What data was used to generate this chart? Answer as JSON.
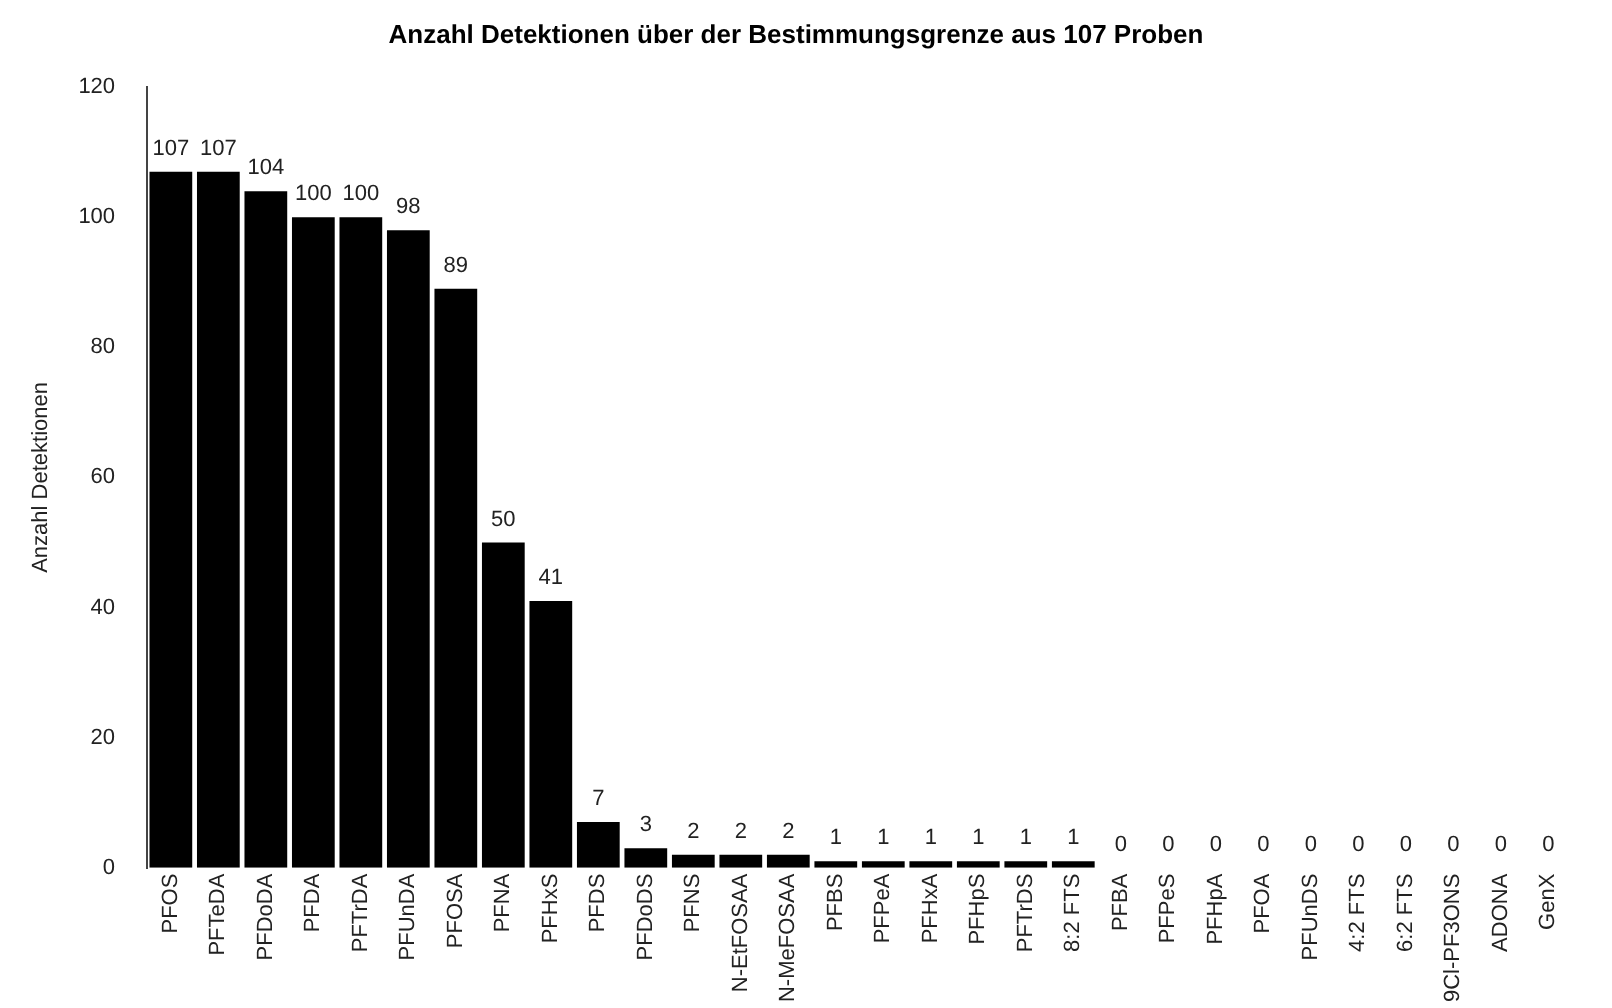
{
  "chart_data": {
    "type": "bar",
    "title": "Anzahl Detektionen über der Bestimmungsgrenze aus 107 Proben",
    "ylabel": "Anzahl Detektionen",
    "categories": [
      "PFOS",
      "PFTeDA",
      "PFDoDA",
      "PFDA",
      "PFTrDA",
      "PFUnDA",
      "PFOSA",
      "PFNA",
      "PFHxS",
      "PFDS",
      "PFDoDS",
      "PFNS",
      "N-EtFOSAA",
      "N-MeFOSAA",
      "PFBS",
      "PFPeA",
      "PFHxA",
      "PFHpS",
      "PFTrDS",
      "8:2 FTS",
      "PFBA",
      "PFPeS",
      "PFHpA",
      "PFOA",
      "PFUnDS",
      "4:2 FTS",
      "6:2 FTS",
      "9Cl-PF3ONS",
      "ADONA",
      "GenX"
    ],
    "values": [
      107,
      107,
      104,
      100,
      100,
      98,
      89,
      50,
      41,
      7,
      3,
      2,
      2,
      2,
      1,
      1,
      1,
      1,
      1,
      1,
      0,
      0,
      0,
      0,
      0,
      0,
      0,
      0,
      0,
      0
    ],
    "color": "#000000",
    "data_labels": true,
    "ylim": [
      0,
      120
    ],
    "yticks": [
      0,
      20,
      40,
      60,
      80,
      100,
      120
    ],
    "grid": false,
    "legend": false
  }
}
